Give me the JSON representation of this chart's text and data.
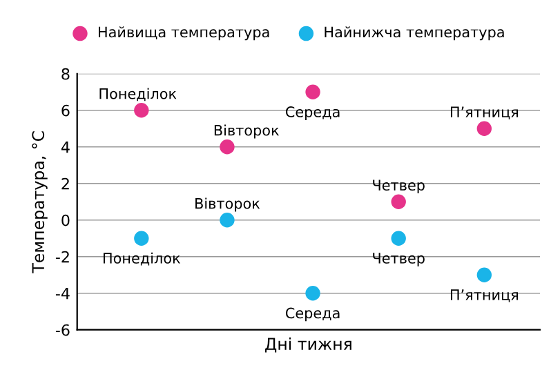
{
  "chart_data": {
    "type": "scatter",
    "xlabel": "Дні тижня",
    "ylabel": "Температура, °С",
    "categories": [
      "Понеділок",
      "Вівторок",
      "Середа",
      "Четвер",
      "П’ятниця"
    ],
    "series": [
      {
        "name": "Найвища температура",
        "color": "#e6338a",
        "values": [
          6,
          4,
          7,
          1,
          5
        ]
      },
      {
        "name": "Найнижча температура",
        "color": "#1ab4e8",
        "values": [
          -1,
          0,
          -4,
          -1,
          -3
        ]
      }
    ],
    "ylim": [
      -6,
      8
    ],
    "yticks": [
      -6,
      -4,
      -2,
      0,
      2,
      4,
      6,
      8
    ],
    "grid": "y",
    "legend": "top",
    "tick_labels": "y",
    "marker": "circle"
  }
}
